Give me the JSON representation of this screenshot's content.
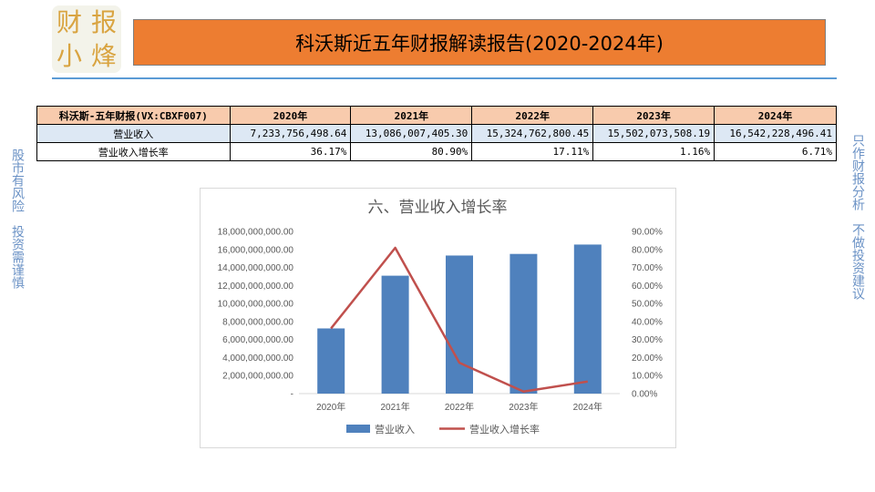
{
  "logo": {
    "chars": [
      "财",
      "报",
      "小",
      "烽"
    ]
  },
  "header": {
    "title": "科沃斯近五年财报解读报告(2020-2024年)"
  },
  "side_left": "股市有风险　投资需谨慎",
  "side_right": "只作财报分析　不做投资建议",
  "table": {
    "corner": "科沃斯-五年财报(VX:CBXF007)",
    "years": [
      "2020年",
      "2021年",
      "2022年",
      "2023年",
      "2024年"
    ],
    "rows": [
      {
        "label": "营业收入",
        "values": [
          "7,233,756,498.64",
          "13,086,007,405.30",
          "15,324,762,800.45",
          "15,502,073,508.19",
          "16,542,228,496.41"
        ]
      },
      {
        "label": "营业收入增长率",
        "values": [
          "36.17%",
          "80.90%",
          "17.11%",
          "1.16%",
          "6.71%"
        ]
      }
    ]
  },
  "colors": {
    "bar": "#4f81bd",
    "line": "#c0504d",
    "header_bg": "#ed7d31"
  },
  "chart_data": {
    "type": "bar",
    "title": "六、营业收入增长率",
    "categories": [
      "2020年",
      "2021年",
      "2022年",
      "2023年",
      "2024年"
    ],
    "series": [
      {
        "name": "营业收入",
        "type": "bar",
        "axis": "left",
        "values": [
          7233756498.64,
          13086007405.3,
          15324762800.45,
          15502073508.19,
          16542228496.41
        ]
      },
      {
        "name": "营业收入增长率",
        "type": "line",
        "axis": "right",
        "values": [
          36.17,
          80.9,
          17.11,
          1.16,
          6.71
        ]
      }
    ],
    "ylim": [
      0,
      18000000000
    ],
    "y2lim": [
      0,
      90
    ],
    "y_ticks": [
      "-",
      "2,000,000,000.00",
      "4,000,000,000.00",
      "6,000,000,000.00",
      "8,000,000,000.00",
      "10,000,000,000.00",
      "12,000,000,000.00",
      "14,000,000,000.00",
      "16,000,000,000.00",
      "18,000,000,000.00"
    ],
    "y2_ticks": [
      "0.00%",
      "10.00%",
      "20.00%",
      "30.00%",
      "40.00%",
      "50.00%",
      "60.00%",
      "70.00%",
      "80.00%",
      "90.00%"
    ],
    "legend": "bottom",
    "grid": false
  }
}
